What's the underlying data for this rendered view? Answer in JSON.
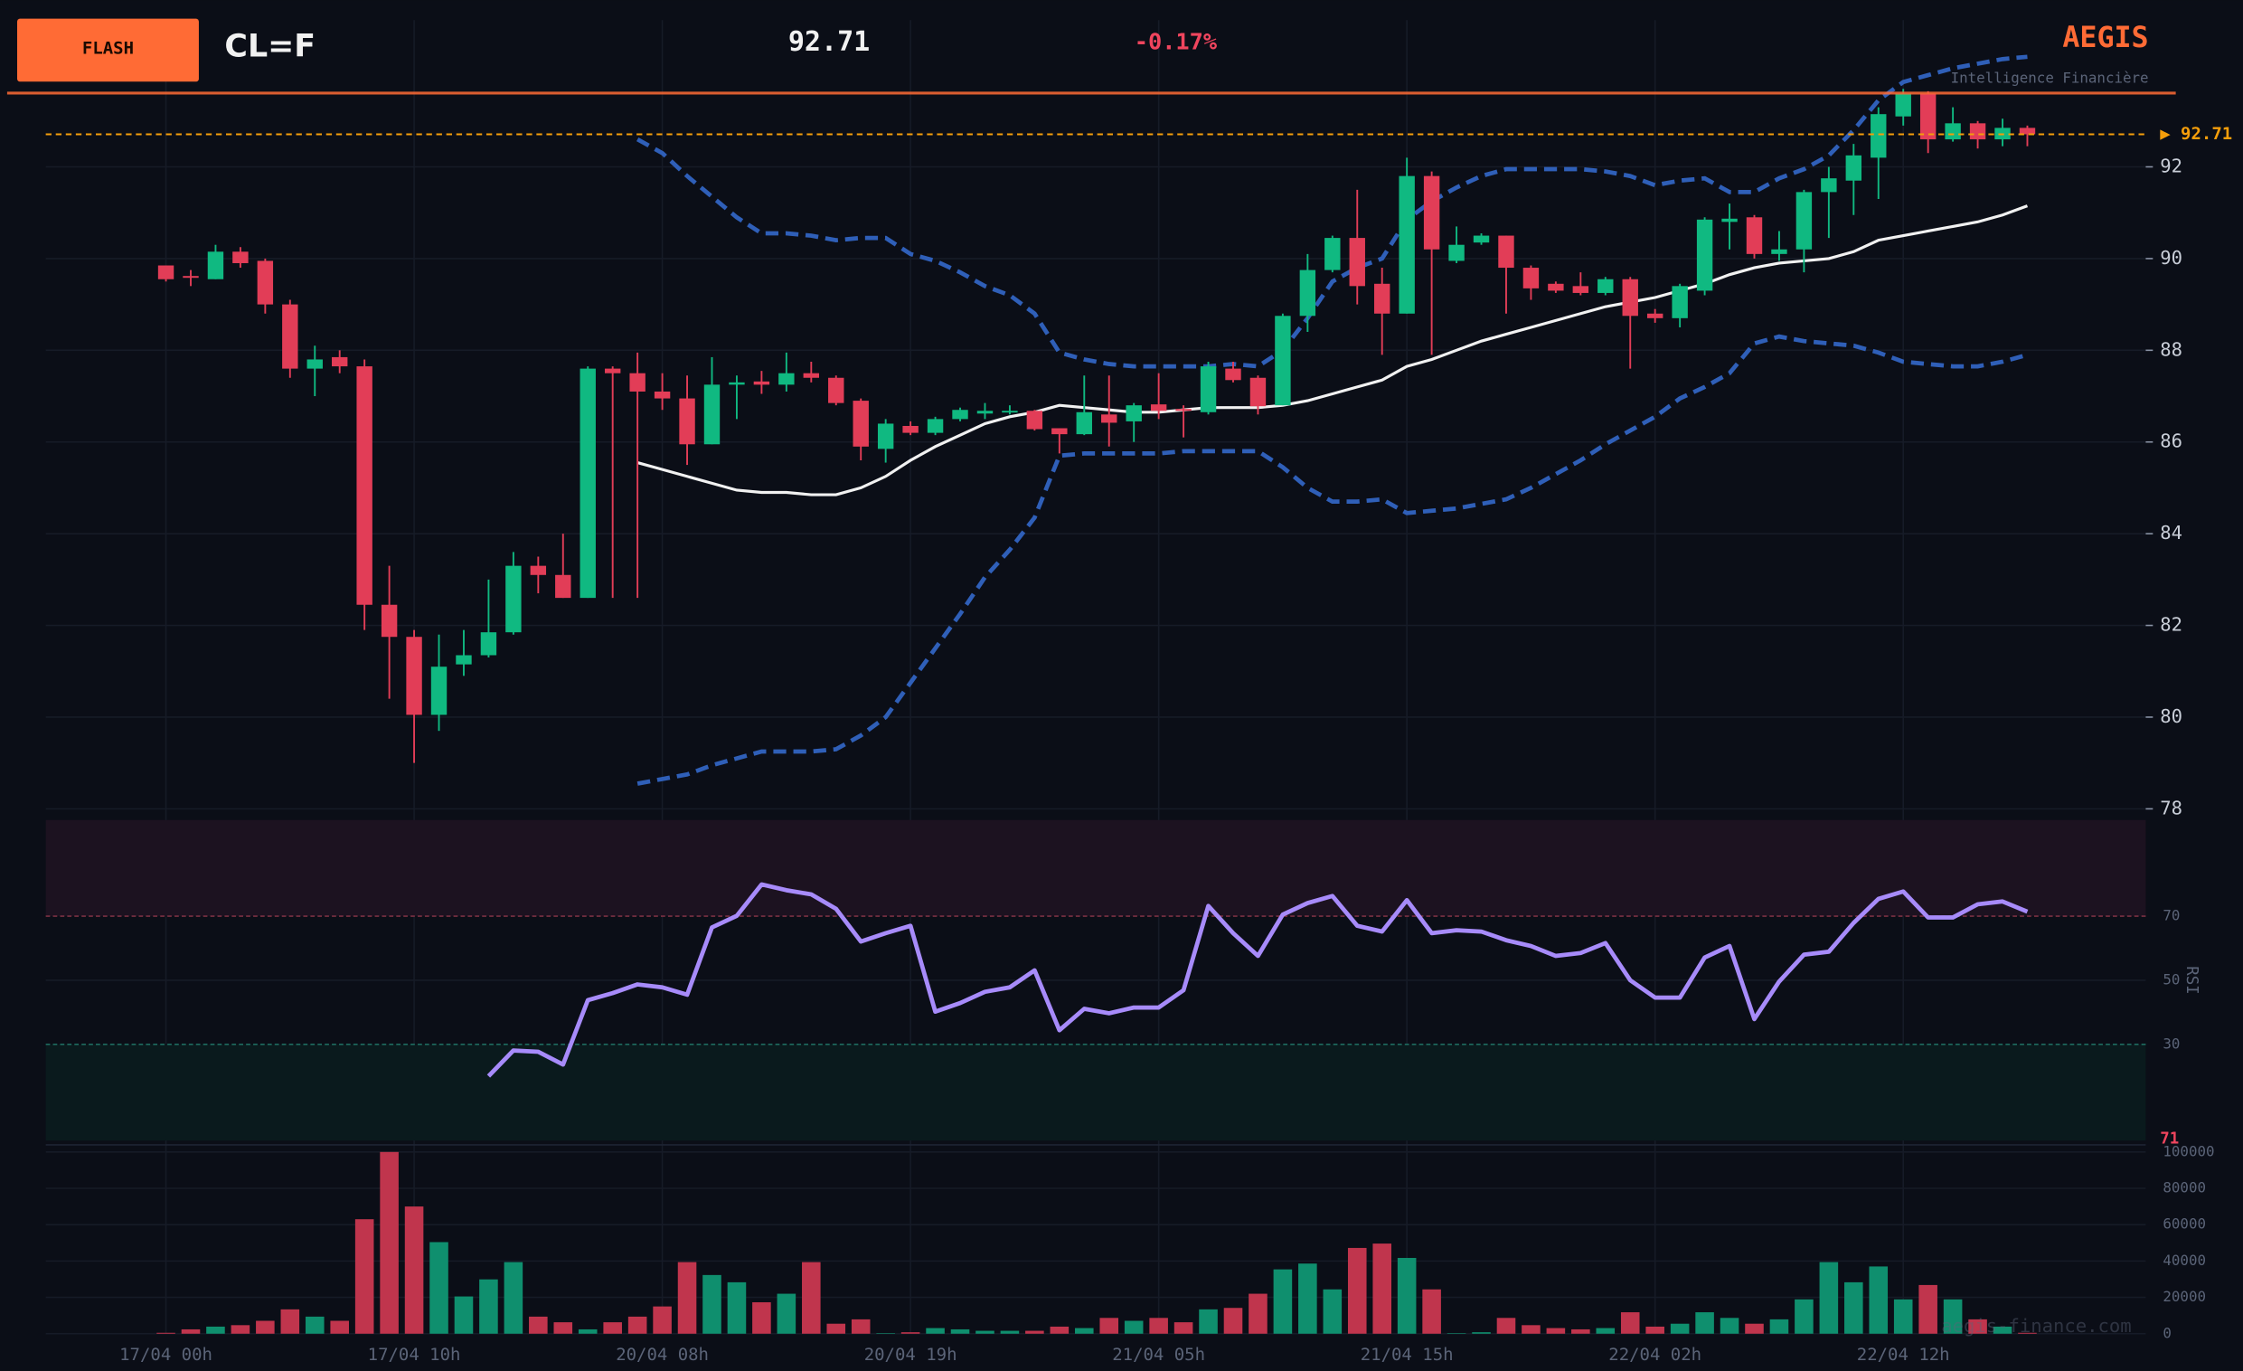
{
  "header": {
    "button": "FLASH",
    "symbol": "CL=F",
    "price": "92.71",
    "change": "-0.17%",
    "brand": "AEGIS",
    "tagline": "Intelligence Financière",
    "watermark": "aegis-finance.com"
  },
  "chart_data": [
    {
      "type": "candlestick",
      "up_color": "#10b981",
      "down_color": "#e23d57",
      "ylim": [
        77.85,
        95.2
      ],
      "yticks": [
        78,
        80,
        82,
        84,
        86,
        88,
        90,
        92
      ],
      "grid": true,
      "last_price": 92.71,
      "last_price_label": "▶ 92.71",
      "last_price_color": "#f59e0b",
      "open": [
        89.85,
        89.62,
        89.55,
        90.15,
        89.95,
        89.0,
        87.6,
        87.85,
        87.65,
        82.45,
        81.75,
        80.05,
        81.15,
        81.35,
        81.85,
        83.3,
        83.1,
        82.6,
        87.6,
        87.5,
        87.1,
        86.95,
        85.95,
        87.25,
        87.32,
        87.25,
        87.5,
        87.4,
        86.9,
        85.85,
        86.35,
        86.2,
        86.5,
        86.62,
        86.65,
        86.68,
        86.3,
        86.17,
        86.6,
        86.45,
        86.82,
        86.72,
        86.65,
        87.6,
        87.4,
        86.8,
        88.75,
        89.75,
        90.45,
        89.45,
        88.8,
        91.8,
        89.95,
        90.35,
        90.5,
        89.8,
        89.45,
        89.4,
        89.25,
        89.55,
        88.8,
        88.7,
        89.3,
        90.8,
        90.9,
        90.1,
        90.2,
        91.45,
        91.7,
        92.2,
        93.1,
        93.6,
        92.6,
        92.95,
        92.6,
        92.85
      ],
      "high": [
        89.85,
        89.75,
        90.3,
        90.25,
        90.0,
        89.1,
        88.1,
        88.0,
        87.8,
        83.3,
        81.9,
        81.8,
        81.9,
        83.0,
        83.6,
        83.5,
        84.0,
        87.65,
        87.65,
        87.95,
        87.5,
        87.45,
        87.85,
        87.45,
        87.55,
        87.95,
        87.75,
        87.45,
        86.95,
        86.5,
        86.45,
        86.55,
        86.75,
        86.85,
        86.8,
        86.7,
        86.3,
        87.45,
        87.45,
        86.85,
        87.5,
        86.8,
        87.75,
        87.75,
        87.45,
        88.8,
        90.1,
        90.5,
        91.5,
        89.8,
        92.2,
        91.9,
        90.7,
        90.55,
        90.5,
        89.85,
        89.5,
        89.7,
        89.6,
        89.6,
        88.9,
        89.45,
        90.9,
        91.2,
        90.95,
        90.6,
        91.5,
        92.0,
        92.5,
        93.3,
        93.7,
        93.65,
        93.3,
        93.0,
        93.05,
        92.9
      ],
      "low": [
        89.5,
        89.4,
        89.55,
        89.8,
        88.8,
        87.4,
        87.0,
        87.5,
        81.9,
        80.4,
        79.0,
        79.7,
        80.9,
        81.3,
        81.8,
        82.7,
        82.6,
        82.6,
        82.6,
        82.6,
        86.7,
        85.5,
        85.95,
        86.5,
        87.05,
        87.1,
        87.3,
        86.8,
        85.6,
        85.55,
        86.15,
        86.15,
        86.45,
        86.5,
        86.6,
        86.25,
        85.75,
        86.15,
        85.9,
        86.0,
        86.5,
        86.1,
        86.6,
        87.3,
        86.6,
        86.8,
        88.4,
        89.7,
        89.0,
        87.9,
        88.8,
        87.9,
        89.9,
        90.3,
        88.8,
        89.1,
        89.25,
        89.2,
        89.2,
        87.6,
        88.6,
        88.5,
        89.2,
        90.2,
        90.0,
        89.95,
        89.7,
        90.45,
        90.95,
        91.3,
        92.9,
        92.3,
        92.55,
        92.4,
        92.45,
        92.45
      ],
      "close": [
        89.55,
        89.58,
        90.15,
        89.9,
        89.0,
        87.6,
        87.8,
        87.65,
        82.45,
        81.75,
        80.05,
        81.1,
        81.35,
        81.85,
        83.3,
        83.1,
        82.6,
        87.6,
        87.5,
        87.1,
        86.95,
        85.95,
        87.25,
        87.3,
        87.25,
        87.5,
        87.4,
        86.85,
        85.9,
        86.4,
        86.2,
        86.5,
        86.7,
        86.68,
        86.68,
        86.28,
        86.17,
        86.65,
        86.42,
        86.8,
        86.68,
        86.68,
        87.65,
        87.35,
        86.78,
        88.75,
        89.75,
        90.45,
        89.4,
        88.8,
        91.8,
        90.2,
        90.3,
        90.5,
        89.8,
        89.35,
        89.3,
        89.25,
        89.55,
        88.75,
        88.7,
        89.4,
        90.85,
        90.87,
        90.1,
        90.2,
        91.45,
        91.75,
        92.25,
        93.15,
        93.6,
        92.6,
        92.95,
        92.6,
        92.85,
        92.71
      ],
      "upper_band": {
        "color": "#2f5fb8",
        "values": [
          null,
          null,
          null,
          null,
          null,
          null,
          null,
          null,
          null,
          null,
          null,
          null,
          null,
          null,
          null,
          null,
          null,
          null,
          null,
          92.6,
          92.3,
          91.8,
          91.35,
          90.9,
          90.55,
          90.55,
          90.5,
          90.4,
          90.45,
          90.45,
          90.1,
          89.95,
          89.7,
          89.4,
          89.2,
          88.8,
          87.95,
          87.8,
          87.7,
          87.65,
          87.65,
          87.65,
          87.65,
          87.7,
          87.65,
          88.0,
          88.7,
          89.5,
          89.8,
          90.0,
          90.85,
          91.25,
          91.55,
          91.8,
          91.95,
          91.95,
          91.95,
          91.95,
          91.9,
          91.8,
          91.6,
          91.7,
          91.75,
          91.45,
          91.45,
          91.75,
          91.95,
          92.25,
          92.8,
          93.45,
          93.85,
          94.0,
          94.15,
          94.25,
          94.35,
          94.4
        ]
      },
      "sma": {
        "color": "#f1f1f1",
        "values": [
          null,
          null,
          null,
          null,
          null,
          null,
          null,
          null,
          null,
          null,
          null,
          null,
          null,
          null,
          null,
          null,
          null,
          null,
          null,
          85.55,
          85.4,
          85.25,
          85.1,
          84.95,
          84.9,
          84.9,
          84.85,
          84.85,
          85.0,
          85.25,
          85.6,
          85.9,
          86.15,
          86.4,
          86.55,
          86.65,
          86.8,
          86.75,
          86.7,
          86.65,
          86.65,
          86.7,
          86.75,
          86.75,
          86.75,
          86.8,
          86.9,
          87.05,
          87.2,
          87.35,
          87.65,
          87.8,
          88.0,
          88.2,
          88.35,
          88.5,
          88.65,
          88.8,
          88.95,
          89.05,
          89.15,
          89.3,
          89.45,
          89.65,
          89.8,
          89.9,
          89.95,
          90.0,
          90.15,
          90.4,
          90.5,
          90.6,
          90.7,
          90.8,
          90.95,
          91.15
        ]
      },
      "lower_band": {
        "color": "#2f5fb8",
        "values": [
          null,
          null,
          null,
          null,
          null,
          null,
          null,
          null,
          null,
          null,
          null,
          null,
          null,
          null,
          null,
          null,
          null,
          null,
          null,
          78.55,
          78.65,
          78.75,
          78.95,
          79.1,
          79.25,
          79.25,
          79.25,
          79.3,
          79.6,
          80.0,
          80.75,
          81.5,
          82.25,
          83.05,
          83.65,
          84.35,
          85.7,
          85.75,
          85.75,
          85.75,
          85.75,
          85.8,
          85.8,
          85.8,
          85.8,
          85.45,
          85.0,
          84.7,
          84.7,
          84.75,
          84.45,
          84.5,
          84.55,
          84.65,
          84.75,
          85.0,
          85.3,
          85.6,
          85.95,
          86.25,
          86.55,
          86.95,
          87.2,
          87.5,
          88.15,
          88.3,
          88.2,
          88.15,
          88.1,
          87.95,
          87.75,
          87.7,
          87.65,
          87.65,
          87.75,
          87.9
        ]
      }
    },
    {
      "type": "line",
      "y_label": "RSI",
      "color": "#a78bfa",
      "ylim": [
        0,
        100
      ],
      "yticks": [
        30,
        50,
        70
      ],
      "overbought": 70,
      "oversold": 30,
      "last_value_label": "71",
      "values": [
        null,
        null,
        null,
        null,
        null,
        null,
        null,
        null,
        null,
        null,
        null,
        null,
        null,
        20.1,
        28.1,
        27.7,
        23.7,
        43.8,
        46,
        48.7,
        47.8,
        45.5,
        66.5,
        70.1,
        79.9,
        78.1,
        76.8,
        72.3,
        62.1,
        64.7,
        67,
        40.2,
        42.9,
        46.4,
        47.8,
        53.1,
        34.4,
        41.1,
        39.7,
        41.5,
        41.5,
        46.9,
        73.2,
        64.7,
        57.6,
        70.5,
        74.1,
        76.3,
        67,
        65.2,
        75,
        64.7,
        65.6,
        65.2,
        62.5,
        60.7,
        57.6,
        58.5,
        61.6,
        50,
        44.6,
        44.6,
        57.1,
        60.7,
        37.9,
        49.6,
        58,
        58.9,
        67.9,
        75.4,
        77.7,
        69.6,
        69.6,
        73.7,
        74.6,
        71.4
      ]
    },
    {
      "type": "bar",
      "up_color": "#0f8f6e",
      "down_color": "#c0354d",
      "ylim": [
        0,
        100000
      ],
      "yticks": [
        0,
        20000,
        40000,
        60000,
        80000,
        100000
      ],
      "categories": [
        "17/04 00h",
        null,
        null,
        null,
        null,
        null,
        null,
        null,
        null,
        null,
        "17/04 10h",
        null,
        null,
        null,
        null,
        null,
        null,
        null,
        null,
        null,
        "20/04 08h",
        null,
        null,
        null,
        null,
        null,
        null,
        null,
        null,
        null,
        "20/04 19h",
        null,
        null,
        null,
        null,
        null,
        null,
        null,
        null,
        null,
        "21/04 05h",
        null,
        null,
        null,
        null,
        null,
        null,
        null,
        null,
        null,
        "21/04 15h",
        null,
        null,
        null,
        null,
        null,
        null,
        null,
        null,
        null,
        "22/04 02h",
        null,
        null,
        null,
        null,
        null,
        null,
        null,
        null,
        null,
        "22/04 12h",
        null,
        null,
        null,
        null,
        null
      ],
      "values": [
        500,
        2400,
        3900,
        4700,
        7100,
        13400,
        9400,
        7100,
        63000,
        100000,
        70000,
        50400,
        20500,
        29900,
        39400,
        9400,
        6300,
        2400,
        6300,
        9400,
        15000,
        39400,
        32300,
        28300,
        17300,
        22000,
        39400,
        5500,
        7900,
        300,
        800,
        3100,
        2400,
        1600,
        1600,
        1600,
        3900,
        3100,
        8700,
        7100,
        8700,
        6300,
        13400,
        14200,
        22000,
        35400,
        38600,
        24400,
        47200,
        49600,
        41700,
        24400,
        300,
        800,
        8700,
        4700,
        3100,
        2400,
        3100,
        11800,
        3900,
        5500,
        11800,
        8700,
        5500,
        7900,
        18900,
        39400,
        28300,
        37000,
        18900,
        26800,
        18900,
        7900,
        3900,
        500
      ]
    }
  ]
}
